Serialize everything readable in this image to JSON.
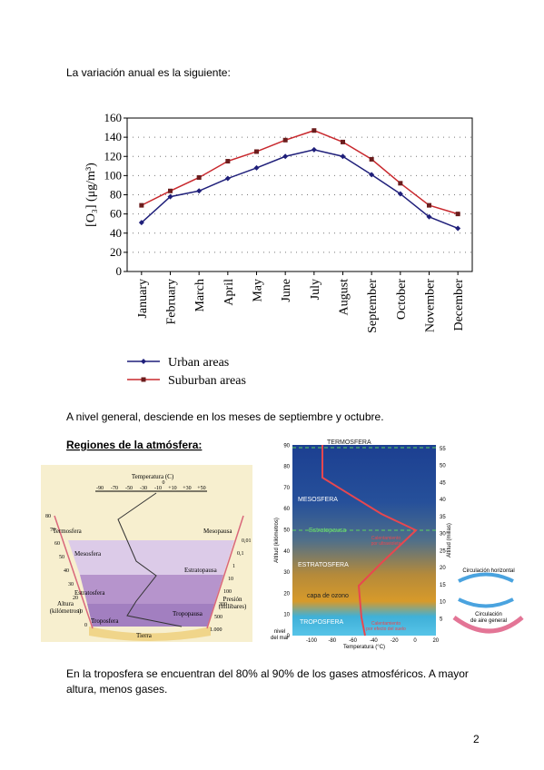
{
  "paragraphs": [
    "La variación anual es la siguiente:",
    "A nivel general, desciende en los meses de septiembre y octubre.",
    "En la troposfera se encuentran del 80% al 90% de los gases atmosféricos. A mayor",
    "altura, menos gases."
  ],
  "heading": "Regiones de la atmósfera:",
  "page_number": "2",
  "chart_data": {
    "type": "line",
    "y_label": "[O₃] (μg/m³)",
    "categories": [
      "January",
      "February",
      "March",
      "April",
      "May",
      "June",
      "July",
      "August",
      "September",
      "October",
      "November",
      "December"
    ],
    "series": [
      {
        "name": "Urban areas",
        "color": "#1f1f7a",
        "marker": "diamond",
        "values": [
          51,
          78,
          84,
          97,
          108,
          120,
          127,
          120,
          101,
          81,
          57,
          45
        ]
      },
      {
        "name": "Suburban areas",
        "color": "#c8282d",
        "marker": "square",
        "values": [
          69,
          84,
          98,
          115,
          125,
          137,
          147,
          135,
          117,
          92,
          69,
          60
        ]
      }
    ],
    "ylim": [
      0,
      160
    ],
    "yticks": [
      0,
      20,
      40,
      60,
      80,
      100,
      120,
      140,
      160
    ],
    "grid": true,
    "legend": "bottom-left"
  },
  "diagram_left": {
    "temperature_label": "Temperatura (C)",
    "temperature_zero": "0",
    "temperature_ticks": [
      "-90",
      "-70",
      "-50",
      "-30",
      "-10",
      "+10",
      "+30",
      "+50"
    ],
    "altitude_ticks": [
      "0",
      "10",
      "20",
      "30",
      "40",
      "50",
      "60",
      "70",
      "80"
    ],
    "pressure_ticks": [
      "0,01",
      "0,1",
      "1",
      "10",
      "100",
      "300",
      "500",
      "1.000"
    ],
    "layers": [
      "Termosfera",
      "Mesosfera",
      "Estratosfera",
      "Troposfera",
      "Tierra"
    ],
    "boundaries": [
      "Mesopausa",
      "Estratopausa",
      "Tropopausa"
    ],
    "altitude_label": [
      "Altura",
      "(kilómetros)"
    ],
    "pressure_label": [
      "Presión",
      "(milibares)"
    ]
  },
  "diagram_right": {
    "km_ticks": [
      "0",
      "10",
      "20",
      "30",
      "40",
      "50",
      "60",
      "70",
      "80",
      "90"
    ],
    "mile_ticks": [
      "5",
      "10",
      "15",
      "20",
      "25",
      "30",
      "35",
      "40",
      "45",
      "50",
      "55"
    ],
    "temperature_ticks": [
      "-100",
      "-80",
      "-60",
      "-40",
      "-20",
      "0",
      "20"
    ],
    "km_label": "Altitud (kilómetros)",
    "mile_label": "Altitud (millas)",
    "temperature_label": "Temperatura (°C)",
    "sea_level": [
      "nivel",
      "del mar"
    ],
    "layers": [
      "TERMOSFERA",
      "MESOSFERA",
      "Estratopausa",
      "ESTRATOSFERA",
      "capa de ozono",
      "TROPOSFERA"
    ],
    "heating": [
      [
        "Calentamiento",
        "por ultravioleta"
      ],
      [
        "Calentamiento",
        "por efecto del suelo"
      ]
    ],
    "circulation": [
      [
        "Circulación horizontal"
      ],
      [
        "Circulación",
        "de aire general"
      ]
    ]
  }
}
